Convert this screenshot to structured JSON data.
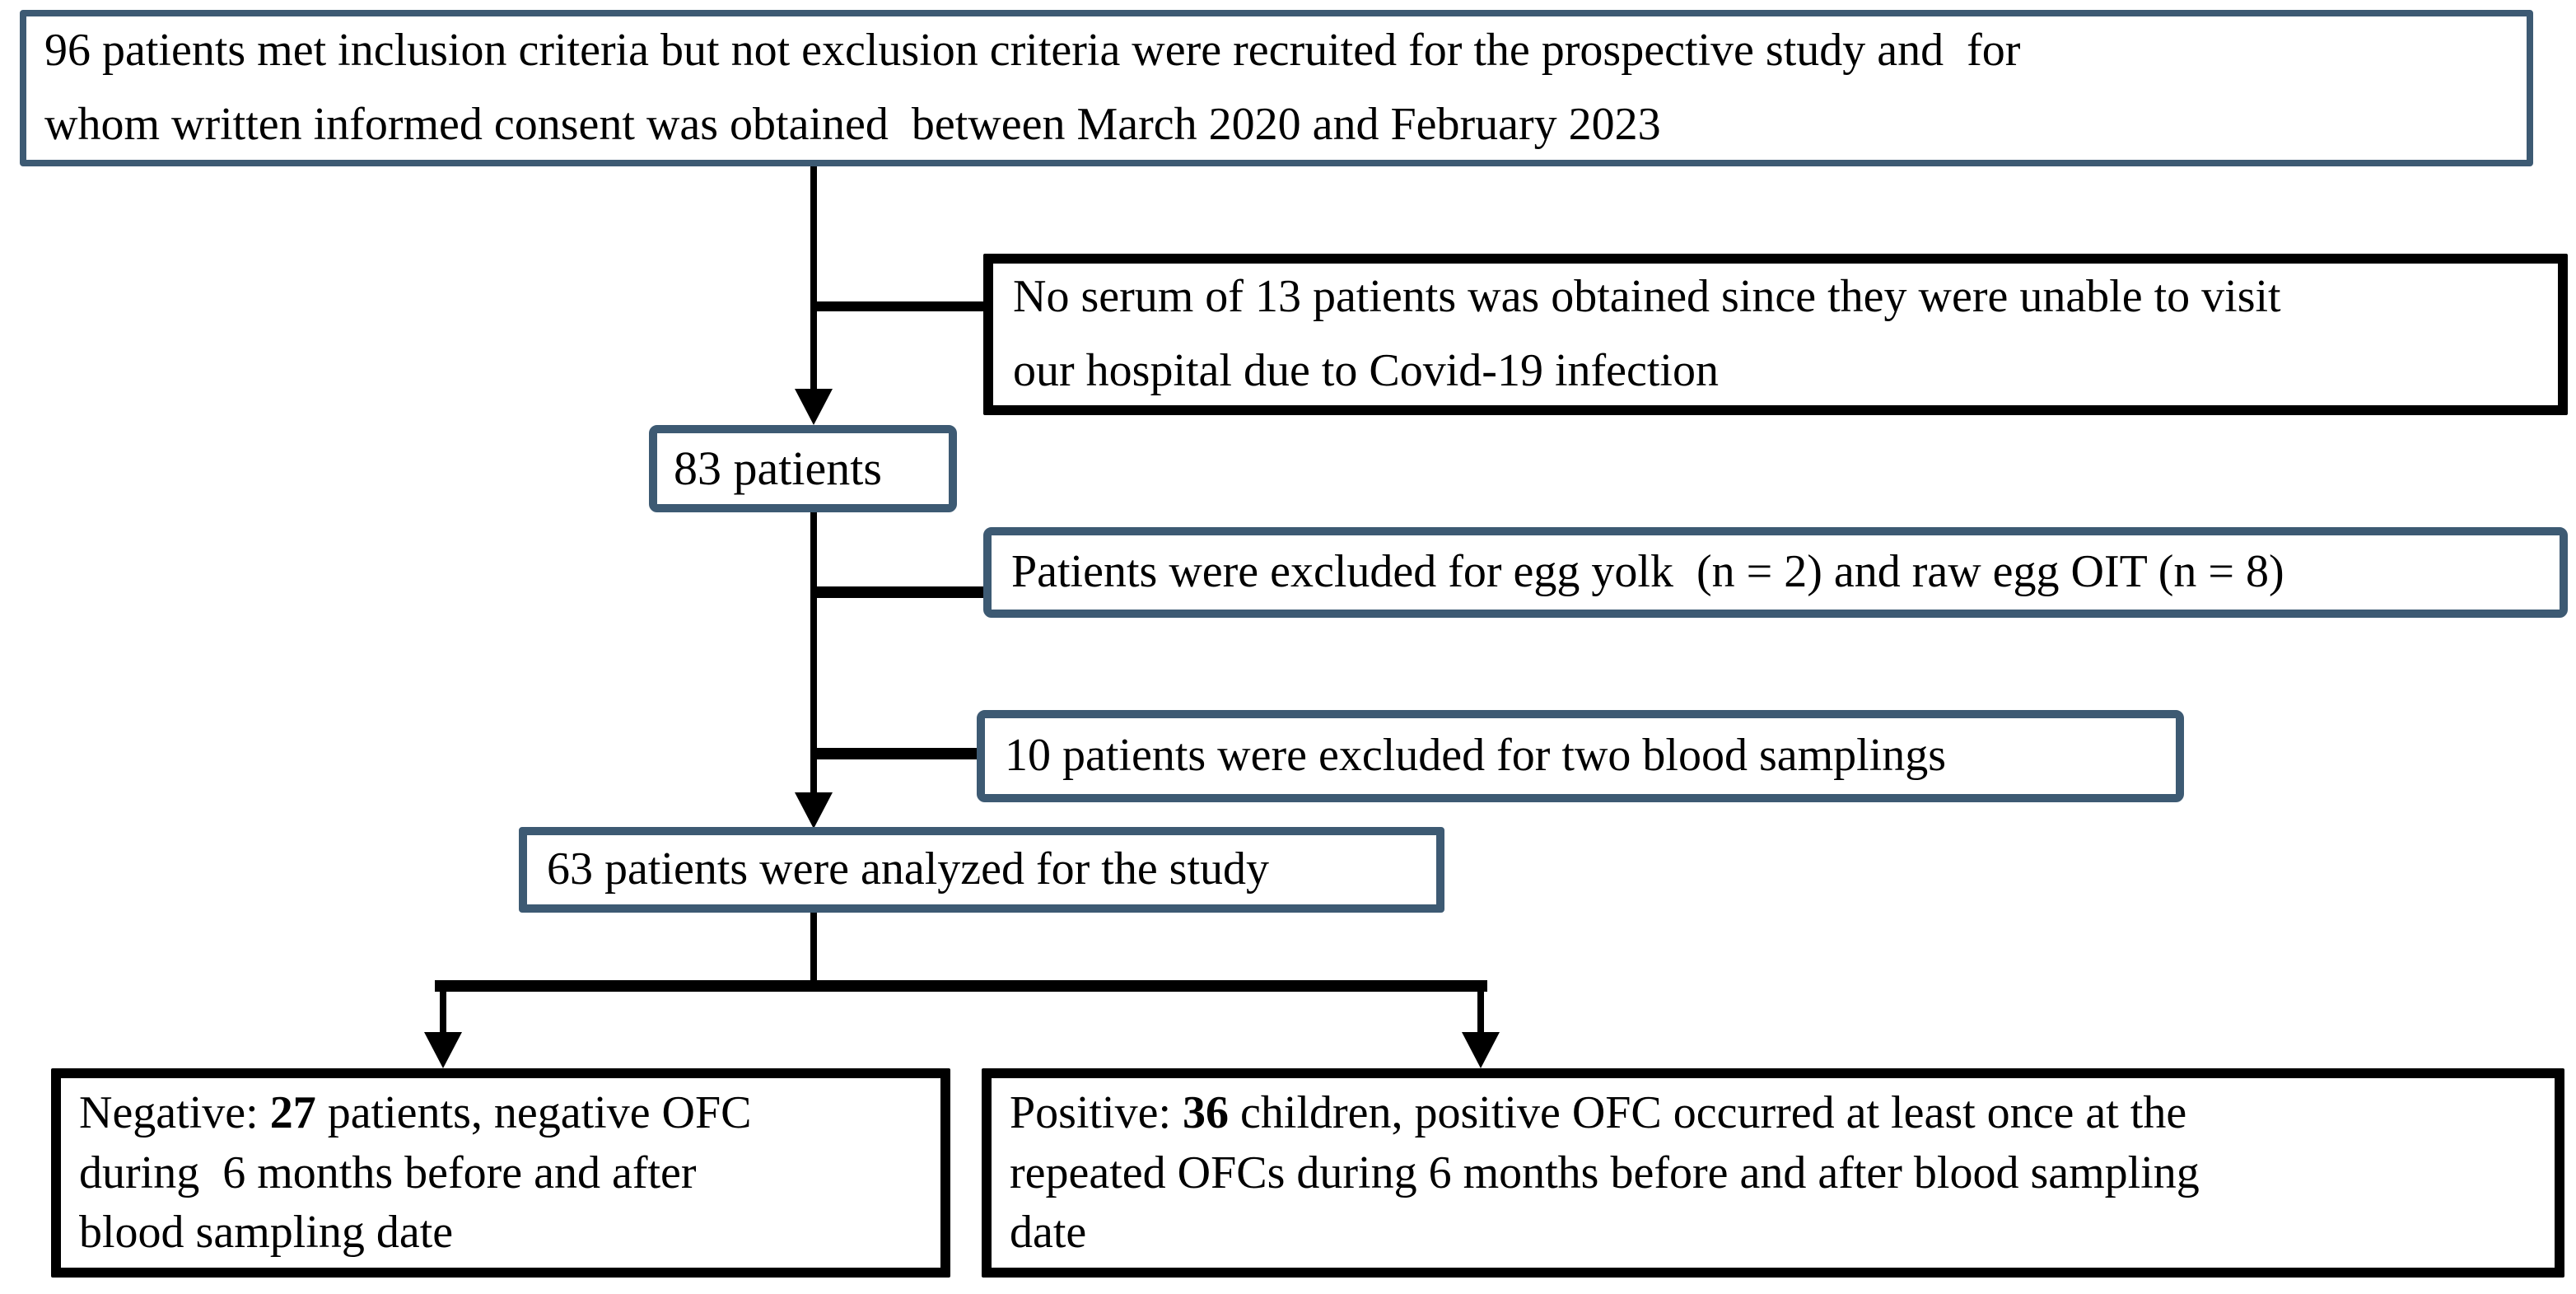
{
  "figure": {
    "title": "patient recruitment flow diagram",
    "colors": {
      "accent_border": "#3d5a73",
      "exclusion_border": "#000000",
      "text": "#000000",
      "background": "#ffffff"
    },
    "boxes": {
      "recruited": {
        "text": "96 patients met inclusion criteria but not exclusion criteria were recruited for the prospective study and  for\nwhom written informed consent was obtained  between March 2020 and February 2023"
      },
      "no_serum": {
        "text": "No serum of 13 patients was obtained since they were unable to visit\nour hospital due to Covid-19 infection"
      },
      "eighty_three": {
        "text": "83 patients"
      },
      "egg_exclusion": {
        "text": "Patients were excluded for egg yolk  (n = 2) and raw egg OIT (n = 8)"
      },
      "blood_sampling_exclusion": {
        "text": "10 patients were excluded for two blood samplings"
      },
      "analyzed": {
        "text": "63 patients were analyzed for the study"
      },
      "negative": {
        "prefix": "Negative: ",
        "count": "27",
        "suffix": " patients, negative OFC\nduring  6 months before and after\nblood sampling date"
      },
      "positive": {
        "prefix": "Positive: ",
        "count": "36",
        "suffix": " children, positive OFC occurred at least once at the\nrepeated OFCs during 6 months before and after blood sampling\ndate"
      }
    }
  }
}
